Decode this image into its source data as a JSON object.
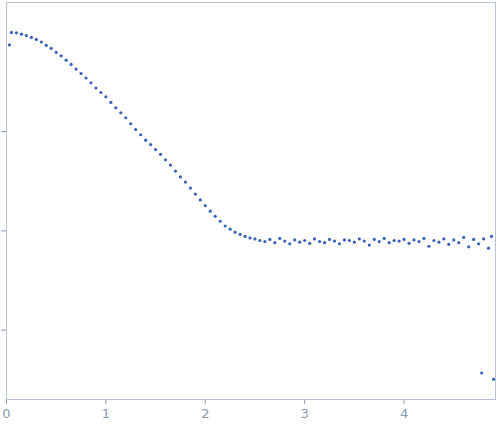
{
  "chart_data": {
    "type": "scatter",
    "color": "#3a63b8",
    "marker": "circle",
    "log": "y",
    "grid": false,
    "tick_labels": "x",
    "xlim": [
      0,
      4.92
    ],
    "xticks": [
      0,
      1,
      2,
      3,
      4
    ],
    "ylim": [
      0.002,
      20
    ],
    "yticks": [
      0.01,
      0.1,
      1
    ],
    "x": [
      0.03,
      0.05,
      0.1,
      0.15,
      0.2,
      0.25,
      0.3,
      0.35,
      0.4,
      0.45,
      0.5,
      0.55,
      0.6,
      0.65,
      0.7,
      0.75,
      0.8,
      0.85,
      0.9,
      0.95,
      1.0,
      1.05,
      1.1,
      1.15,
      1.2,
      1.25,
      1.3,
      1.35,
      1.4,
      1.45,
      1.5,
      1.55,
      1.6,
      1.65,
      1.7,
      1.75,
      1.8,
      1.85,
      1.9,
      1.95,
      2.0,
      2.05,
      2.1,
      2.15,
      2.2,
      2.25,
      2.3,
      2.35,
      2.4,
      2.45,
      2.5,
      2.55,
      2.6,
      2.65,
      2.7,
      2.75,
      2.8,
      2.85,
      2.9,
      2.95,
      3.0,
      3.05,
      3.1,
      3.15,
      3.2,
      3.25,
      3.3,
      3.35,
      3.4,
      3.45,
      3.5,
      3.55,
      3.6,
      3.65,
      3.7,
      3.75,
      3.8,
      3.85,
      3.9,
      3.95,
      4.0,
      4.05,
      4.1,
      4.15,
      4.2,
      4.25,
      4.3,
      4.35,
      4.4,
      4.45,
      4.5,
      4.55,
      4.6,
      4.65,
      4.7,
      4.75,
      4.78,
      4.8,
      4.85,
      4.88,
      4.9
    ],
    "values": [
      7.5,
      10.0,
      9.9,
      9.6,
      9.3,
      8.9,
      8.5,
      8.0,
      7.4,
      6.9,
      6.3,
      5.8,
      5.25,
      4.75,
      4.27,
      3.85,
      3.47,
      3.1,
      2.75,
      2.48,
      2.24,
      1.97,
      1.74,
      1.55,
      1.38,
      1.2,
      1.05,
      0.93,
      0.82,
      0.74,
      0.66,
      0.59,
      0.52,
      0.46,
      0.4,
      0.35,
      0.31,
      0.27,
      0.235,
      0.205,
      0.18,
      0.158,
      0.14,
      0.125,
      0.112,
      0.104,
      0.097,
      0.092,
      0.088,
      0.085,
      0.083,
      0.08,
      0.078,
      0.082,
      0.076,
      0.084,
      0.079,
      0.074,
      0.081,
      0.077,
      0.08,
      0.075,
      0.083,
      0.078,
      0.076,
      0.082,
      0.079,
      0.074,
      0.081,
      0.08,
      0.077,
      0.083,
      0.079,
      0.072,
      0.082,
      0.078,
      0.084,
      0.076,
      0.08,
      0.079,
      0.082,
      0.075,
      0.081,
      0.078,
      0.084,
      0.07,
      0.08,
      0.077,
      0.083,
      0.073,
      0.081,
      0.076,
      0.086,
      0.069,
      0.082,
      0.074,
      0.0037,
      0.083,
      0.067,
      0.088,
      0.0032
    ]
  }
}
